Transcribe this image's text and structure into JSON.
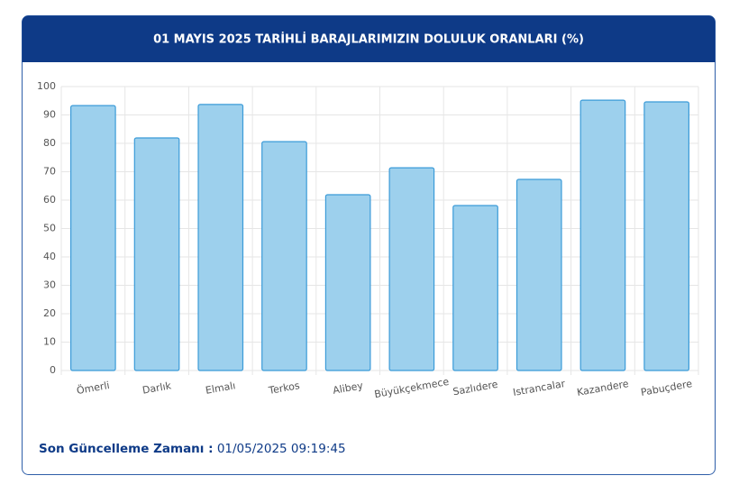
{
  "chart_data": {
    "type": "bar",
    "title": "01 MAYIS 2025 TARİHLİ BARAJLARIMIZIN DOLULUK ORANLARI (%)",
    "categories": [
      "Ömerli",
      "Darlık",
      "Elmalı",
      "Terkos",
      "Alibey",
      "Büyükçekmece",
      "Sazlıdere",
      "Istrancalar",
      "Kazandere",
      "Pabuçdere"
    ],
    "values": [
      93.3,
      81.9,
      93.7,
      80.6,
      61.9,
      71.4,
      58.1,
      67.3,
      95.2,
      94.6
    ],
    "color": "#9dd0ed",
    "edge_color": "#3b9bd8",
    "ylim": [
      0,
      100
    ],
    "yticks": [
      0,
      10,
      20,
      30,
      40,
      50,
      60,
      70,
      80,
      90,
      100
    ],
    "grid": true
  },
  "footer": {
    "label": "Son Güncelleme Zamanı :",
    "value": "01/05/2025 09:19:45"
  }
}
